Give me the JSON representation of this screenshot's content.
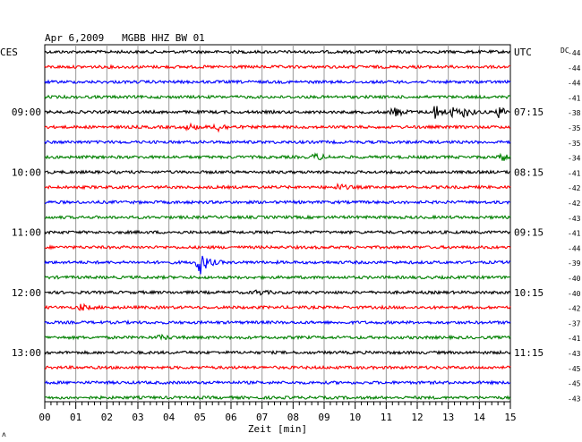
{
  "header": {
    "title": "Apr 6,2009   MGBB HHZ BW 01",
    "left_unit": "CES",
    "right_unit": "UTC",
    "dc_label": "DC",
    "corner_mark": "ʌ"
  },
  "chart_data": {
    "type": "line",
    "title": "Apr 6,2009   MGBB HHZ BW 01",
    "xlabel": "Zeit [min]",
    "ylabel": "",
    "x_ticks": [
      "00",
      "01",
      "02",
      "03",
      "04",
      "05",
      "06",
      "07",
      "08",
      "09",
      "10",
      "11",
      "12",
      "13",
      "14",
      "15"
    ],
    "xlim": [
      0,
      15
    ],
    "grid": true,
    "row_count": 24,
    "row_colors": [
      "#000000",
      "#ff0000",
      "#0000ff",
      "#008000"
    ],
    "left_time_labels": [
      {
        "row": 4,
        "text": "09:00"
      },
      {
        "row": 8,
        "text": "10:00"
      },
      {
        "row": 12,
        "text": "11:00"
      },
      {
        "row": 16,
        "text": "12:00"
      },
      {
        "row": 20,
        "text": "13:00"
      }
    ],
    "right_time_labels": [
      {
        "row": 0,
        "text": "UTC"
      },
      {
        "row": 4,
        "text": "07:15"
      },
      {
        "row": 8,
        "text": "08:15"
      },
      {
        "row": 12,
        "text": "09:15"
      },
      {
        "row": 16,
        "text": "10:15"
      },
      {
        "row": 20,
        "text": "11:15"
      }
    ],
    "dc_offsets": [
      "-44",
      "-44",
      "-44",
      "-41",
      "-38",
      "-35",
      "-35",
      "-34",
      "-41",
      "-42",
      "-42",
      "-43",
      "-41",
      "-44",
      "-39",
      "-40",
      "-40",
      "-42",
      "-37",
      "-41",
      "-43",
      "-45",
      "-45",
      "-43"
    ],
    "events": [
      {
        "row": 4,
        "minute": 11.2,
        "amp": 7
      },
      {
        "row": 4,
        "minute": 12.5,
        "amp": 10
      },
      {
        "row": 4,
        "minute": 13.1,
        "amp": 5
      },
      {
        "row": 4,
        "minute": 13.5,
        "amp": 5
      },
      {
        "row": 4,
        "minute": 14.6,
        "amp": 7
      },
      {
        "row": 5,
        "minute": 5.5,
        "amp": 6
      },
      {
        "row": 5,
        "minute": 4.6,
        "amp": 4
      },
      {
        "row": 7,
        "minute": 8.7,
        "amp": 4
      },
      {
        "row": 7,
        "minute": 14.7,
        "amp": 5
      },
      {
        "row": 9,
        "minute": 9.4,
        "amp": 4
      },
      {
        "row": 14,
        "minute": 4.95,
        "amp": 16
      },
      {
        "row": 16,
        "minute": 6.8,
        "amp": 3
      },
      {
        "row": 17,
        "minute": 1.1,
        "amp": 4
      },
      {
        "row": 19,
        "minute": 3.7,
        "amp": 3
      }
    ]
  }
}
